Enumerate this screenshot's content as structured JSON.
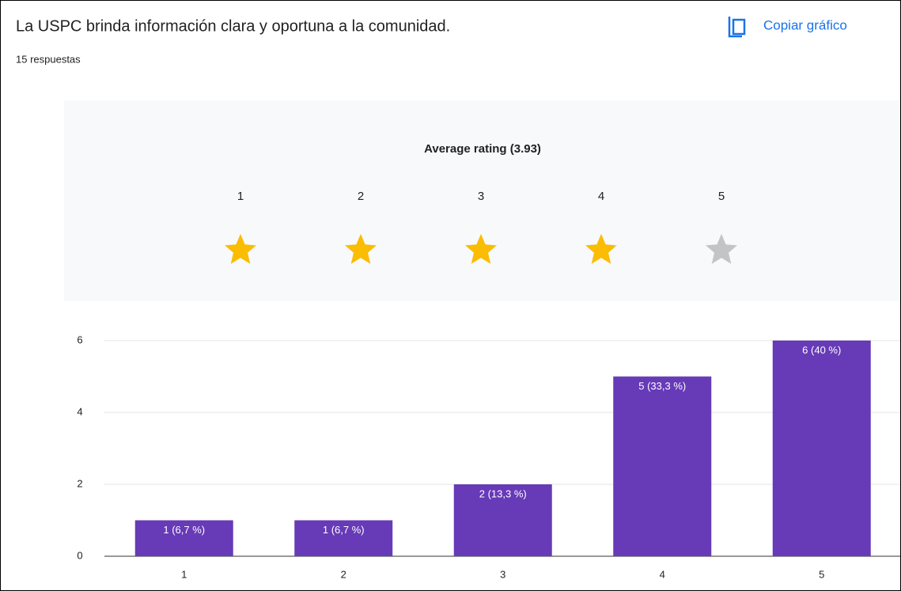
{
  "header": {
    "title": "La USPC brinda información clara y oportuna a la comunidad.",
    "responses": "15 respuestas",
    "copy_button": "Copiar gráfico"
  },
  "rating": {
    "title": "Average rating (3.93)",
    "value": 3.93,
    "labels": [
      1,
      2,
      3,
      4,
      5
    ]
  },
  "chart_data": {
    "type": "bar",
    "categories": [
      "1",
      "2",
      "3",
      "4",
      "5"
    ],
    "values": [
      1,
      1,
      2,
      5,
      6
    ],
    "value_labels": [
      "1 (6,7 %)",
      "1 (6,7 %)",
      "2 (13,3 %)",
      "5 (33,3 %)",
      "6 (40 %)"
    ],
    "color": "#673ab7",
    "ylim": [
      0,
      6
    ],
    "yticks": [
      0,
      2,
      4,
      6
    ],
    "grid": true
  }
}
